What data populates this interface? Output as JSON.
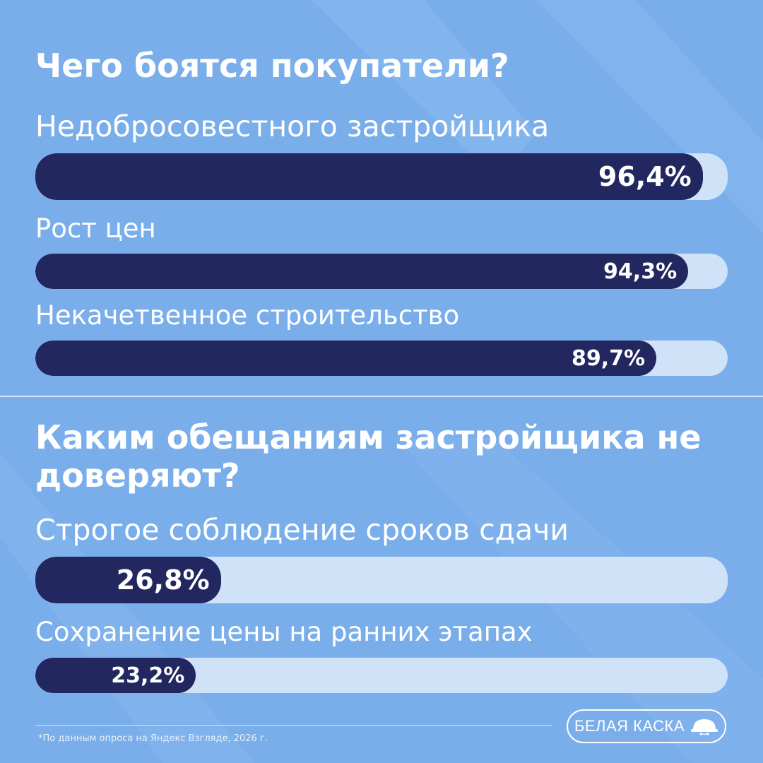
{
  "colors": {
    "background": "#7aaeeb",
    "bar_fill": "#22275f",
    "bar_track": "#cfe2f8",
    "text": "#ffffff"
  },
  "chart_data": [
    {
      "type": "bar",
      "orientation": "horizontal",
      "title": "Чего боятся покупатели?",
      "unit": "%",
      "xlim": [
        0,
        100
      ],
      "grid": false,
      "categories": [
        "Недобросовестного застройщика",
        "Рост цен",
        "Некачетвенное строительство"
      ],
      "values": [
        96.4,
        94.3,
        89.7
      ],
      "value_labels": [
        "96,4%",
        "94,3%",
        "89,7%"
      ]
    },
    {
      "type": "bar",
      "orientation": "horizontal",
      "title": "Каким обещаниям застройщика не доверяют?",
      "unit": "%",
      "xlim": [
        0,
        100
      ],
      "grid": false,
      "categories": [
        "Строгое соблюдение сроков сдачи",
        "Сохранение цены на ранних этапах"
      ],
      "values": [
        26.8,
        23.2
      ],
      "value_labels": [
        "26,8%",
        "23,2%"
      ]
    }
  ],
  "footer": {
    "note": "*По данным опроса на Яндекс Взгляде, 2026 г.",
    "brand": "БЕЛАЯ КАСКА",
    "brand_icon": "helmet-icon"
  }
}
